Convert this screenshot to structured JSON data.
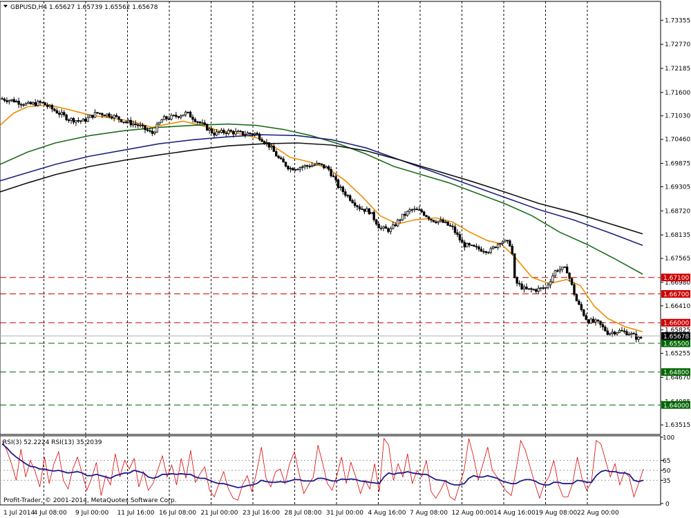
{
  "chart_data": [
    {
      "type": "candlestick",
      "header": "GBPUSD,H4  1.65627 1.65739 1.65562 1.65678",
      "y_ticks": [
        "1.73355",
        "1.72770",
        "1.72185",
        "1.71600",
        "1.71030",
        "1.70460",
        "1.69875",
        "1.69305",
        "1.68720",
        "1.68135",
        "1.67565",
        "1.66980",
        "1.66410",
        "1.65825",
        "1.65255",
        "1.64670",
        "1.64085",
        "1.63515"
      ],
      "ylim": [
        1.633,
        1.7378
      ],
      "x_tick_labels": [
        "1 Jul 2014",
        "4 Jul 08:00",
        "9 Jul 00:00",
        "11 Jul 16:00",
        "16 Jul 08:00",
        "21 Jul 00:00",
        "23 Jul 16:00",
        "28 Jul 08:00",
        "31 Jul 00:00",
        "4 Aug 16:00",
        "7 Aug 08:00",
        "12 Aug 00:00",
        "14 Aug 16:00",
        "19 Aug 08:00",
        "22 Aug 00:00"
      ],
      "current_price": {
        "label": "1.65678",
        "value": 1.65678
      },
      "horizontal_levels": [
        {
          "label": "1.67100",
          "value": 1.671,
          "color": "#cc0000"
        },
        {
          "label": "1.66700",
          "value": 1.667,
          "color": "#cc0000"
        },
        {
          "label": "1.66000",
          "value": 1.66,
          "color": "#cc0000"
        },
        {
          "label": "1.65500",
          "value": 1.655,
          "color": "#006600"
        },
        {
          "label": "1.64800",
          "value": 1.648,
          "color": "#006600"
        },
        {
          "label": "1.64000",
          "value": 1.64,
          "color": "#006600"
        }
      ],
      "price_path": [
        [
          0,
          1.7145
        ],
        [
          20,
          1.714
        ],
        [
          40,
          1.713
        ],
        [
          60,
          1.7135
        ],
        [
          80,
          1.7115
        ],
        [
          100,
          1.7095
        ],
        [
          120,
          1.709
        ],
        [
          140,
          1.711
        ],
        [
          160,
          1.7105
        ],
        [
          180,
          1.709
        ],
        [
          200,
          1.708
        ],
        [
          220,
          1.706
        ],
        [
          235,
          1.7095
        ],
        [
          250,
          1.71
        ],
        [
          270,
          1.711
        ],
        [
          290,
          1.7085
        ],
        [
          310,
          1.706
        ],
        [
          330,
          1.7065
        ],
        [
          350,
          1.706
        ],
        [
          370,
          1.706
        ],
        [
          390,
          1.703
        ],
        [
          405,
          1.6995
        ],
        [
          420,
          1.6975
        ],
        [
          440,
          1.698
        ],
        [
          460,
          1.6985
        ],
        [
          475,
          1.6975
        ],
        [
          490,
          1.693
        ],
        [
          505,
          1.6905
        ],
        [
          520,
          1.688
        ],
        [
          535,
          1.687
        ],
        [
          550,
          1.683
        ],
        [
          565,
          1.6825
        ],
        [
          580,
          1.6855
        ],
        [
          595,
          1.6875
        ],
        [
          610,
          1.687
        ],
        [
          625,
          1.685
        ],
        [
          640,
          1.6845
        ],
        [
          655,
          1.683
        ],
        [
          670,
          1.679
        ],
        [
          690,
          1.678
        ],
        [
          710,
          1.6775
        ],
        [
          725,
          1.68
        ],
        [
          740,
          1.679
        ],
        [
          745,
          1.67
        ],
        [
          760,
          1.668
        ],
        [
          775,
          1.668
        ],
        [
          790,
          1.6685
        ],
        [
          805,
          1.673
        ],
        [
          820,
          1.673
        ],
        [
          835,
          1.665
        ],
        [
          850,
          1.6605
        ],
        [
          865,
          1.66
        ],
        [
          880,
          1.6575
        ],
        [
          895,
          1.658
        ],
        [
          910,
          1.6575
        ],
        [
          925,
          1.656
        ],
        [
          932,
          1.6568
        ]
      ],
      "moving_averages": [
        {
          "color": "#f08c00",
          "points": [
            [
              0,
              1.708
            ],
            [
              20,
              1.711
            ],
            [
              40,
              1.7125
            ],
            [
              70,
              1.713
            ],
            [
              100,
              1.7118
            ],
            [
              130,
              1.7105
            ],
            [
              160,
              1.7098
            ],
            [
              190,
              1.709
            ],
            [
              220,
              1.7075
            ],
            [
              240,
              1.7082
            ],
            [
              265,
              1.709
            ],
            [
              290,
              1.708
            ],
            [
              315,
              1.7068
            ],
            [
              345,
              1.706
            ],
            [
              375,
              1.7048
            ],
            [
              395,
              1.703
            ],
            [
              420,
              1.7002
            ],
            [
              450,
              1.699
            ],
            [
              475,
              1.6975
            ],
            [
              500,
              1.6945
            ],
            [
              525,
              1.6905
            ],
            [
              550,
              1.686
            ],
            [
              575,
              1.684
            ],
            [
              600,
              1.685
            ],
            [
              630,
              1.6855
            ],
            [
              655,
              1.6845
            ],
            [
              680,
              1.682
            ],
            [
              705,
              1.68
            ],
            [
              725,
              1.6792
            ],
            [
              745,
              1.676
            ],
            [
              770,
              1.671
            ],
            [
              795,
              1.6695
            ],
            [
              820,
              1.6705
            ],
            [
              840,
              1.669
            ],
            [
              860,
              1.664
            ],
            [
              880,
              1.661
            ],
            [
              905,
              1.659
            ],
            [
              930,
              1.6578
            ]
          ]
        },
        {
          "color": "#1a6e1a",
          "points": [
            [
              0,
              1.6985
            ],
            [
              40,
              1.7015
            ],
            [
              80,
              1.7037
            ],
            [
              130,
              1.7055
            ],
            [
              180,
              1.7067
            ],
            [
              230,
              1.7075
            ],
            [
              280,
              1.708
            ],
            [
              330,
              1.7083
            ],
            [
              370,
              1.708
            ],
            [
              410,
              1.707
            ],
            [
              450,
              1.7055
            ],
            [
              490,
              1.7035
            ],
            [
              530,
              1.701
            ],
            [
              570,
              1.698
            ],
            [
              610,
              1.696
            ],
            [
              650,
              1.694
            ],
            [
              690,
              1.6915
            ],
            [
              730,
              1.689
            ],
            [
              770,
              1.686
            ],
            [
              810,
              1.682
            ],
            [
              850,
              1.679
            ],
            [
              890,
              1.6755
            ],
            [
              930,
              1.6718
            ]
          ]
        },
        {
          "color": "#1a237e",
          "points": [
            [
              0,
              1.6945
            ],
            [
              40,
              1.6965
            ],
            [
              80,
              1.6985
            ],
            [
              130,
              1.7005
            ],
            [
              180,
              1.702
            ],
            [
              230,
              1.7035
            ],
            [
              280,
              1.7045
            ],
            [
              330,
              1.7052
            ],
            [
              380,
              1.7057
            ],
            [
              430,
              1.7055
            ],
            [
              480,
              1.7045
            ],
            [
              530,
              1.7025
            ],
            [
              580,
              1.6995
            ],
            [
              630,
              1.6965
            ],
            [
              680,
              1.6935
            ],
            [
              730,
              1.6905
            ],
            [
              780,
              1.6875
            ],
            [
              830,
              1.685
            ],
            [
              880,
              1.682
            ],
            [
              930,
              1.6788
            ]
          ]
        },
        {
          "color": "#111111",
          "points": [
            [
              0,
              1.6918
            ],
            [
              40,
              1.694
            ],
            [
              80,
              1.696
            ],
            [
              130,
              1.698
            ],
            [
              180,
              1.6995
            ],
            [
              230,
              1.7008
            ],
            [
              280,
              1.702
            ],
            [
              330,
              1.703
            ],
            [
              380,
              1.7035
            ],
            [
              430,
              1.7037
            ],
            [
              480,
              1.7032
            ],
            [
              530,
              1.7018
            ],
            [
              580,
              1.6995
            ],
            [
              630,
              1.697
            ],
            [
              680,
              1.6945
            ],
            [
              730,
              1.6918
            ],
            [
              780,
              1.689
            ],
            [
              830,
              1.6868
            ],
            [
              880,
              1.6842
            ],
            [
              930,
              1.6816
            ]
          ]
        }
      ]
    },
    {
      "type": "line",
      "header": "RSI(3) 52.2224  RSI(13) 35.2039",
      "y_ticks": [
        "100",
        "65",
        "50",
        "35",
        "0"
      ],
      "ylim": [
        0,
        100
      ],
      "levels": [
        65,
        50,
        35
      ],
      "series": [
        {
          "name": "RSI(3)",
          "color": "#dd0000",
          "values": [
            95,
            80,
            60,
            35,
            82,
            40,
            65,
            48,
            25,
            70,
            30,
            60,
            78,
            35,
            22,
            52,
            70,
            45,
            20,
            38,
            62,
            12,
            42,
            28,
            75,
            40,
            65,
            52,
            68,
            25,
            48,
            20,
            30,
            50,
            72,
            40,
            58,
            28,
            68,
            38,
            80,
            32,
            45,
            55,
            20,
            10,
            30,
            48,
            22,
            8,
            5,
            28,
            42,
            18,
            48,
            85,
            38,
            25,
            48,
            52,
            30,
            60,
            78,
            45,
            15,
            28,
            40,
            88,
            60,
            30,
            20,
            42,
            70,
            30,
            62,
            40,
            15,
            35,
            22,
            60,
            18,
            98,
            88,
            35,
            60,
            40,
            75,
            30,
            50,
            40,
            65,
            18,
            8,
            20,
            35,
            10,
            5,
            28,
            50,
            98,
            70,
            35,
            60,
            85,
            50,
            40,
            28,
            18,
            12,
            50,
            95,
            80,
            55,
            30,
            8,
            30,
            40,
            65,
            28,
            10,
            10,
            30,
            70,
            38,
            20,
            32,
            95,
            90,
            65,
            40,
            60,
            28,
            48,
            40,
            10,
            30,
            52
          ]
        },
        {
          "name": "RSI(13)",
          "color": "#1a1a8c",
          "values": [
            90,
            84,
            76,
            70,
            65,
            60,
            56,
            55,
            52,
            52,
            50,
            49,
            50,
            48,
            46,
            47,
            48,
            46,
            42,
            42,
            44,
            42,
            40,
            38,
            42,
            44,
            46,
            46,
            50,
            48,
            46,
            40,
            38,
            40,
            44,
            44,
            45,
            44,
            45,
            44,
            44,
            40,
            38,
            38,
            35,
            32,
            30,
            30,
            28,
            26,
            24,
            25,
            27,
            28,
            30,
            35,
            33,
            32,
            32,
            33,
            32,
            34,
            36,
            36,
            34,
            34,
            34,
            38,
            38,
            36,
            34,
            34,
            37,
            36,
            37,
            36,
            34,
            33,
            32,
            31,
            30,
            40,
            46,
            44,
            46,
            46,
            48,
            46,
            45,
            44,
            44,
            40,
            36,
            35,
            34,
            30,
            28,
            28,
            30,
            38,
            42,
            40,
            40,
            42,
            40,
            38,
            34,
            32,
            30,
            30,
            34,
            36,
            36,
            34,
            30,
            28,
            28,
            32,
            32,
            30,
            30,
            30,
            35,
            34,
            32,
            32,
            42,
            48,
            50,
            48,
            48,
            46,
            46,
            44,
            35,
            33,
            35
          ]
        }
      ]
    }
  ],
  "footer": {
    "copyright": "Profit-Trader, © 2001-2014, MetaQuotes Software Corp."
  },
  "colors": {
    "bull_candle": "#ffffff",
    "bear_candle": "#000000",
    "current_price_tag": "#000000",
    "grid": "#000000"
  }
}
